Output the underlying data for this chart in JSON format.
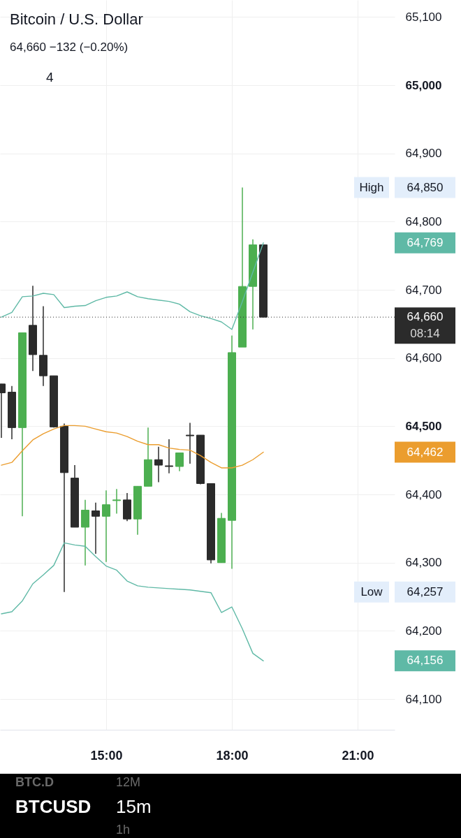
{
  "chart_data": {
    "type": "candlestick",
    "title": "Bitcoin / U.S. Dollar",
    "subtitle": "64,660 −132 (−0.20%)",
    "x": [
      12.5,
      12.75,
      13.0,
      13.25,
      13.5,
      13.75,
      14.0,
      14.25,
      14.5,
      14.75,
      15.0,
      15.25,
      15.5,
      15.75,
      16.0,
      16.25,
      16.5,
      16.75,
      17.0,
      17.25,
      17.5,
      17.75,
      18.0,
      18.25,
      18.5,
      18.75
    ],
    "ohlc": [
      [
        64562,
        64562,
        64483,
        64549
      ],
      [
        64550,
        64559,
        64481,
        64498
      ],
      [
        64498,
        64637,
        64368,
        64637
      ],
      [
        64648,
        64706,
        64581,
        64605
      ],
      [
        64604,
        64676,
        64559,
        64574
      ],
      [
        64574,
        64574,
        64498,
        64499
      ],
      [
        64500,
        64504,
        64257,
        64432
      ],
      [
        64424,
        64443,
        64352,
        64352
      ],
      [
        64352,
        64392,
        64296,
        64377
      ],
      [
        64376,
        64388,
        64313,
        64368
      ],
      [
        64368,
        64406,
        64301,
        64385
      ],
      [
        64391,
        64408,
        64372,
        64392
      ],
      [
        64392,
        64402,
        64361,
        64364
      ],
      [
        64364,
        64412,
        64341,
        64412
      ],
      [
        64412,
        64498,
        64412,
        64451
      ],
      [
        64451,
        64470,
        64418,
        64443
      ],
      [
        64442,
        64481,
        64431,
        64441
      ],
      [
        64441,
        64461,
        64434,
        64461
      ],
      [
        64487,
        64505,
        64445,
        64486
      ],
      [
        64487,
        64487,
        64415,
        64416
      ],
      [
        64416,
        64416,
        64299,
        64304
      ],
      [
        64300,
        64373,
        64300,
        64365
      ],
      [
        64362,
        64633,
        64291,
        64608
      ],
      [
        64616,
        64850,
        64616,
        64705
      ],
      [
        64705,
        64774,
        64642,
        64766
      ],
      [
        64766,
        64766,
        64660,
        64660
      ]
    ],
    "colors": [
      "#2b2b2b",
      "#2b2b2b",
      "#4caf50",
      "#2b2b2b",
      "#2b2b2b",
      "#2b2b2b",
      "#2b2b2b",
      "#2b2b2b",
      "#4caf50",
      "#2b2b2b",
      "#4caf50",
      "#4caf50",
      "#2b2b2b",
      "#4caf50",
      "#4caf50",
      "#2b2b2b",
      "#2b2b2b",
      "#4caf50",
      "#2b2b2b",
      "#2b2b2b",
      "#2b2b2b",
      "#4caf50",
      "#4caf50",
      "#4caf50",
      "#4caf50",
      "#2b2b2b"
    ],
    "series": [
      {
        "type": "line",
        "color": "#5fb9a6",
        "values": [
          64660,
          64667,
          64690,
          64691,
          64695,
          64693,
          64674,
          64676,
          64677,
          64684,
          64689,
          64691,
          64697,
          64690,
          64687,
          64685,
          64683,
          64679,
          64668,
          64662,
          64658,
          64653,
          64642,
          64683,
          64726,
          64769
        ]
      },
      {
        "type": "line",
        "color": "#eb9d2e",
        "values": [
          64443,
          64447,
          64464,
          64480,
          64489,
          64496,
          64501,
          64501,
          64500,
          64496,
          64492,
          64490,
          64485,
          64478,
          64473,
          64473,
          64468,
          64466,
          64465,
          64457,
          64447,
          64439,
          64439,
          64443,
          64451,
          64462
        ]
      },
      {
        "type": "line",
        "color": "#5fb9a6",
        "values": [
          64225,
          64228,
          64244,
          64269,
          64282,
          64296,
          64329,
          64326,
          64324,
          64309,
          64295,
          64289,
          64273,
          64266,
          64264,
          64263,
          64262,
          64261,
          64260,
          64258,
          64256,
          64227,
          64235,
          64203,
          64167,
          64156
        ]
      }
    ],
    "xlim": [
      12.467,
      21.883
    ],
    "ylim": [
      64055,
      65125
    ],
    "xticks": [
      {
        "value": 15,
        "label": "15:00"
      },
      {
        "value": 18,
        "label": "18:00"
      },
      {
        "value": 21,
        "label": "21:00"
      }
    ],
    "yticks": [
      {
        "value": 64100,
        "label": "64,100"
      },
      {
        "value": 64200,
        "label": "64,200"
      },
      {
        "value": 64300,
        "label": "64,300"
      },
      {
        "value": 64400,
        "label": "64,400"
      },
      {
        "value": 64500,
        "label": "64,500"
      },
      {
        "value": 64600,
        "label": "64,600"
      },
      {
        "value": 64700,
        "label": "64,700"
      },
      {
        "value": 64800,
        "label": "64,800"
      },
      {
        "value": 64900,
        "label": "64,900"
      },
      {
        "value": 65000,
        "label": "65,000"
      },
      {
        "value": 65100,
        "label": "65,100"
      }
    ],
    "grid": true,
    "ref_lines": [
      {
        "axis": "y",
        "value": 64660,
        "label": "64,660",
        "color": "#2b2b2b",
        "line_style": "dotted"
      }
    ],
    "annotations": [
      "High",
      "64,850",
      "64,769",
      "08:14",
      "64,462",
      "Low",
      "64,257",
      "64,156",
      "4",
      "BTC.D",
      "12M",
      "BTCUSD",
      "15m",
      "1h"
    ]
  }
}
